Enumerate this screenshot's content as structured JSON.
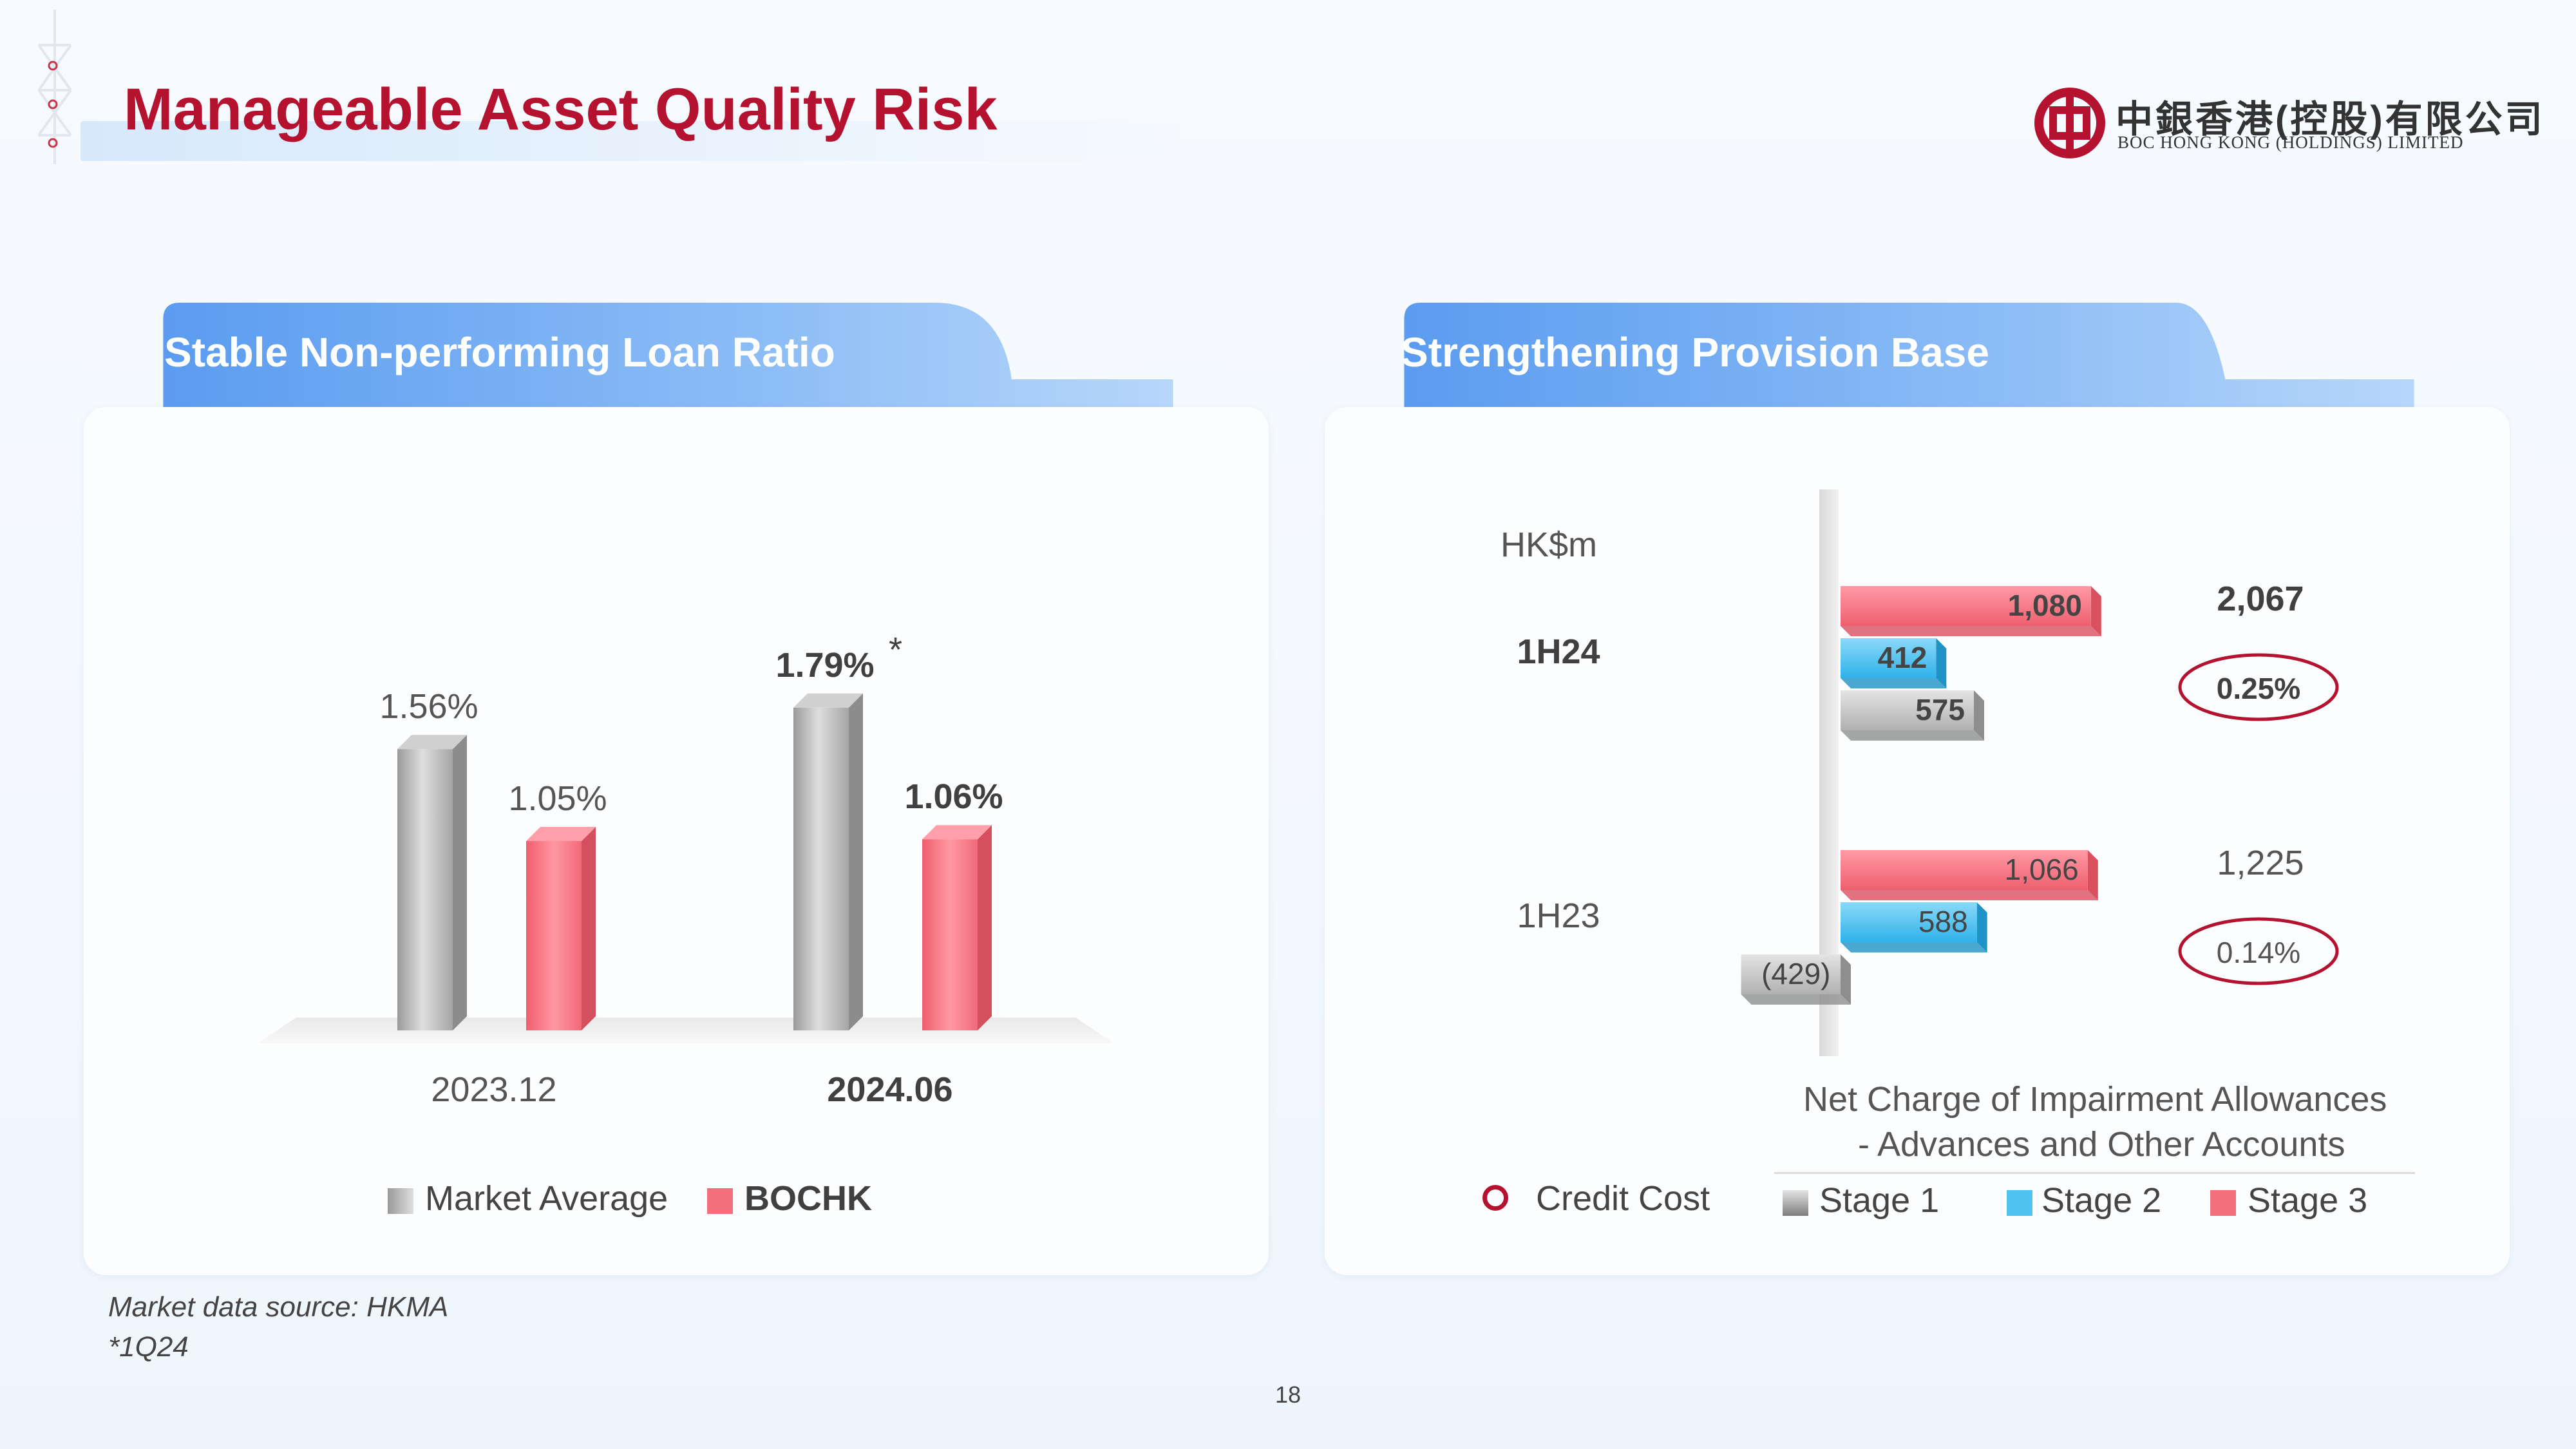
{
  "title": "Manageable Asset Quality Risk",
  "logo": {
    "name_cn": "中銀香港(控股)有限公司",
    "name_en": "BOC HONG KONG (HOLDINGS) LIMITED",
    "logo_icon": "boc-coin-logo-icon",
    "brand_color": "#b4122e"
  },
  "left_panel": {
    "heading": "Stable Non-performing Loan Ratio",
    "chart_data": {
      "type": "bar",
      "categories": [
        "2023.12",
        "2024.06"
      ],
      "series": [
        {
          "name": "Market Average",
          "values": [
            1.56,
            1.79
          ],
          "labels": [
            "1.56%",
            "1.79%"
          ],
          "color": "#b9b9b9"
        },
        {
          "name": "BOCHK",
          "values": [
            1.05,
            1.06
          ],
          "labels": [
            "1.05%",
            "1.06%"
          ],
          "color": "#f2707e"
        }
      ],
      "annotation": "*",
      "ylim": [
        0,
        2.2
      ]
    }
  },
  "right_panel": {
    "heading": "Strengthening Provision Base",
    "chart_data": {
      "type": "bar",
      "orientation": "horizontal",
      "unit_label": "HK$m",
      "categories": [
        "1H24",
        "1H23"
      ],
      "series": [
        {
          "name": "Stage 3",
          "values": [
            1080,
            1066
          ],
          "labels": [
            "1,080",
            "1,066"
          ],
          "color": "#f2707e"
        },
        {
          "name": "Stage 2",
          "values": [
            412,
            588
          ],
          "labels": [
            "412",
            "588"
          ],
          "color": "#4fc3f0"
        },
        {
          "name": "Stage 1",
          "values": [
            575,
            -429
          ],
          "labels": [
            "575",
            "(429)"
          ],
          "color": "#c4c4c4"
        }
      ],
      "totals": [
        "2,067",
        "1,225"
      ],
      "credit_cost": [
        "0.25%",
        "0.14%"
      ],
      "xlim": [
        -600,
        1200
      ]
    },
    "caption_line1": "Net Charge of Impairment Allowances",
    "caption_line2": "- Advances and Other Accounts",
    "legend": {
      "credit_cost": "Credit Cost",
      "stage1": "Stage 1",
      "stage2": "Stage 2",
      "stage3": "Stage 3"
    }
  },
  "footnotes": [
    "Market data source: HKMA",
    "*1Q24"
  ],
  "page_number": "18"
}
